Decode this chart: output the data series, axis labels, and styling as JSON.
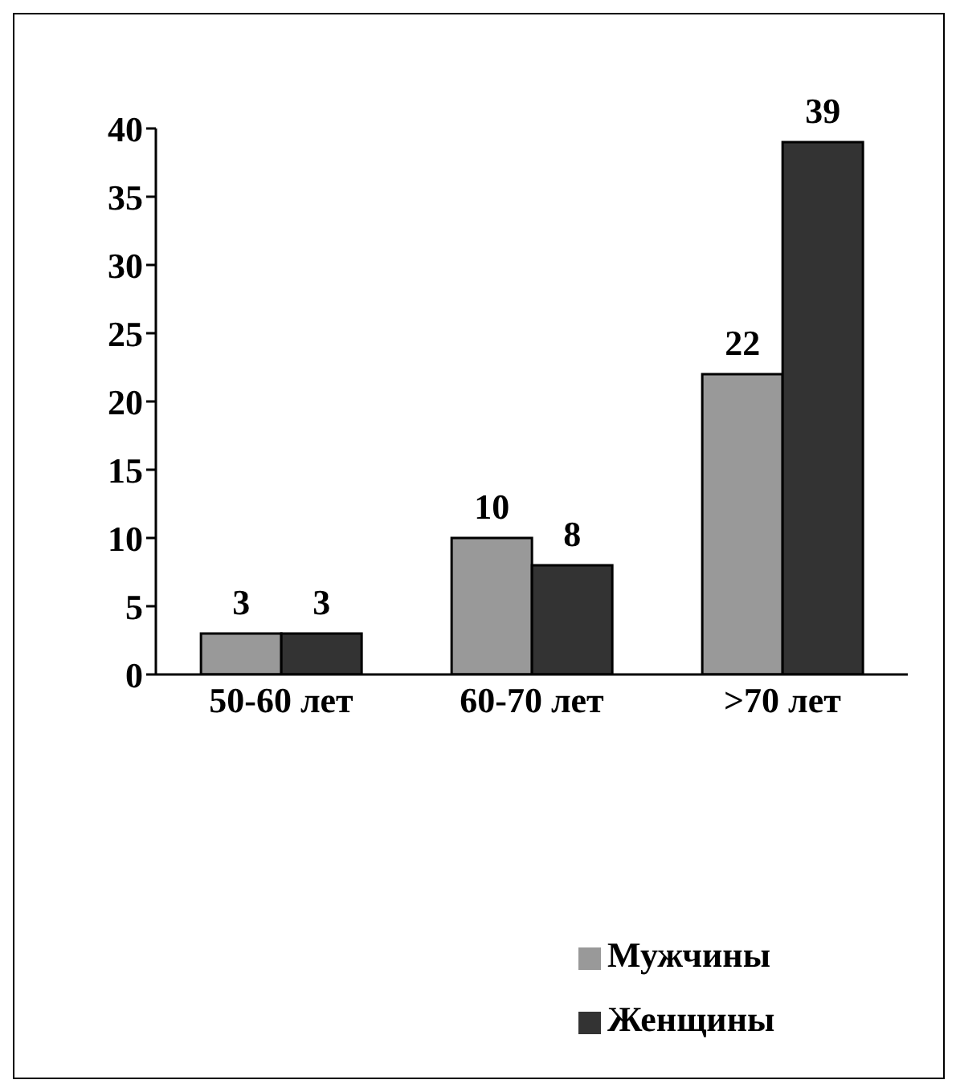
{
  "chart_data": {
    "type": "bar",
    "categories": [
      "50-60 лет",
      "60-70 лет",
      ">70 лет"
    ],
    "series": [
      {
        "name": "Мужчины",
        "color": "#999999",
        "values": [
          3,
          10,
          22
        ]
      },
      {
        "name": "Женщины",
        "color": "#333333",
        "values": [
          3,
          8,
          39
        ]
      }
    ],
    "ylim": [
      0,
      40
    ],
    "yticks": [
      0,
      5,
      10,
      15,
      20,
      25,
      30,
      35,
      40
    ],
    "data_labels": true,
    "legend": "bottom right",
    "grid": false
  }
}
